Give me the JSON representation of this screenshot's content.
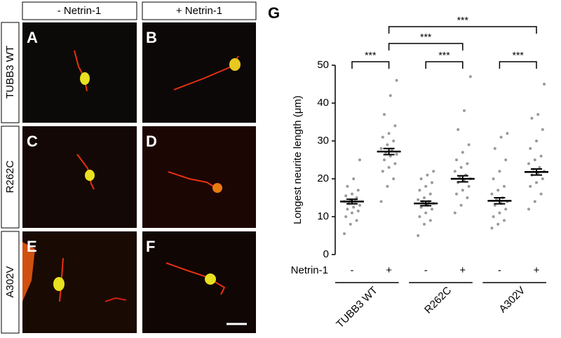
{
  "columns": [
    "- Netrin-1",
    "+ Netrin-1"
  ],
  "rows": [
    "TUBB3 WT",
    "R262C",
    "A302V"
  ],
  "panels": [
    "A",
    "B",
    "C",
    "D",
    "E",
    "F"
  ],
  "chart_data": {
    "type": "dot",
    "panel": "G",
    "ylabel": "Longest neurite length (μm)",
    "ylim": [
      0,
      50
    ],
    "yticks": [
      0,
      10,
      20,
      30,
      40,
      50
    ],
    "row_label": "Netrin-1",
    "categories": [
      "-",
      "+",
      "-",
      "+",
      "-",
      "+"
    ],
    "groups": [
      {
        "label": "TUBB3 WT",
        "span": [
          0,
          1
        ]
      },
      {
        "label": "R262C",
        "span": [
          2,
          3
        ]
      },
      {
        "label": "A302V",
        "span": [
          4,
          5
        ]
      }
    ],
    "color": "#9a9a9a",
    "series": [
      {
        "mean": 14,
        "sem": 0.6,
        "points": [
          5.5,
          8,
          9,
          10,
          11,
          11.5,
          12,
          12.5,
          13,
          13.5,
          14,
          14,
          14.5,
          15,
          15.5,
          16,
          17,
          18,
          20,
          25
        ]
      },
      {
        "mean": 27.2,
        "sem": 0.8,
        "points": [
          14,
          18,
          20,
          22,
          23,
          24,
          25,
          26,
          26.5,
          27,
          27.5,
          28,
          29,
          30,
          31,
          32,
          34,
          37,
          42,
          46
        ]
      },
      {
        "mean": 13.5,
        "sem": 0.6,
        "points": [
          5,
          8,
          9,
          10,
          11,
          12,
          12.5,
          13,
          13.5,
          14,
          14,
          14.5,
          15,
          16,
          17,
          18,
          19,
          20,
          21,
          22
        ]
      },
      {
        "mean": 20,
        "sem": 0.8,
        "points": [
          11,
          13,
          15,
          16,
          17,
          18,
          19,
          19.5,
          20,
          20.5,
          21,
          22,
          23,
          24,
          25,
          27,
          29,
          33,
          38,
          47
        ]
      },
      {
        "mean": 14.2,
        "sem": 0.8,
        "points": [
          7,
          8,
          9,
          10,
          11,
          12,
          13,
          13.5,
          14,
          14.5,
          15,
          16,
          17,
          18,
          20,
          22,
          25,
          28,
          31,
          32
        ]
      },
      {
        "mean": 21.8,
        "sem": 0.8,
        "points": [
          12,
          14,
          16,
          18,
          19,
          20,
          21,
          21.5,
          22,
          22.5,
          23,
          24,
          25,
          26,
          28,
          30,
          33,
          36,
          37,
          45
        ]
      }
    ],
    "comparisons": [
      {
        "from": 0,
        "to": 1,
        "label": "***"
      },
      {
        "from": 2,
        "to": 3,
        "label": "***"
      },
      {
        "from": 4,
        "to": 5,
        "label": "***"
      },
      {
        "from": 1,
        "to": 3,
        "label": "***"
      },
      {
        "from": 1,
        "to": 5,
        "label": "***"
      }
    ]
  }
}
